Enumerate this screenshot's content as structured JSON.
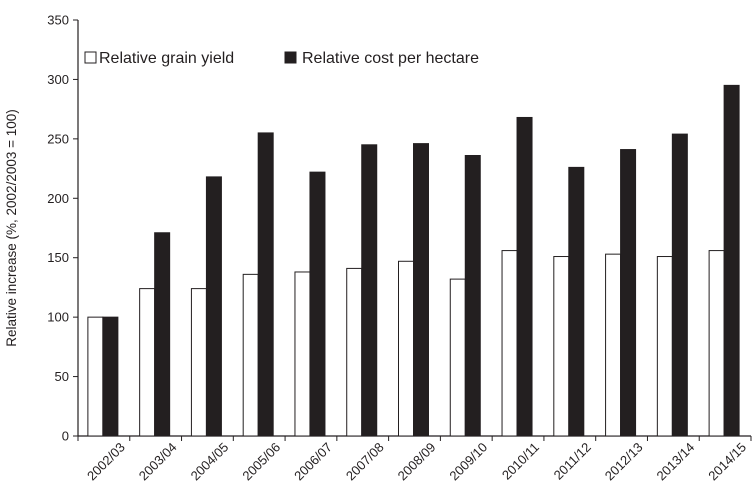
{
  "chart_data": {
    "type": "bar",
    "title": "",
    "xlabel": "",
    "ylabel": "Relative increase (%, 2002/2003 = 100)",
    "ylim": [
      0,
      350
    ],
    "yticks": [
      0,
      50,
      100,
      150,
      200,
      250,
      300,
      350
    ],
    "grid": false,
    "legend_position": "top-left",
    "categories": [
      "2002/03",
      "2003/04",
      "2004/05",
      "2005/06",
      "2006/07",
      "2007/08",
      "2008/09",
      "2009/10",
      "2010/11",
      "2011/12",
      "2012/13",
      "2013/14",
      "2014/15"
    ],
    "series": [
      {
        "name": "Relative grain yield",
        "color": "#ffffff",
        "stroke": "#231f20",
        "values": [
          100,
          124,
          124,
          136,
          138,
          141,
          147,
          132,
          156,
          151,
          153,
          151,
          156
        ]
      },
      {
        "name": "Relative cost per hectare",
        "color": "#231f20",
        "stroke": "#231f20",
        "values": [
          100,
          171,
          218,
          255,
          222,
          245,
          246,
          236,
          268,
          226,
          241,
          254,
          295
        ]
      }
    ]
  }
}
